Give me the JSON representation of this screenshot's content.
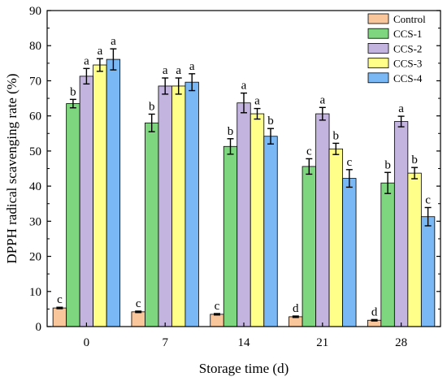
{
  "chart_data": {
    "type": "bar",
    "xlabel": "Storage time (d)",
    "ylabel": "DPPH radical scavenging rate (%)",
    "ylim": [
      0,
      90
    ],
    "yticks": [
      0,
      10,
      20,
      30,
      40,
      50,
      60,
      70,
      80,
      90
    ],
    "categories": [
      "0",
      "7",
      "14",
      "21",
      "28"
    ],
    "legend_position": "top-right",
    "grid": false,
    "series": [
      {
        "name": "Control",
        "color": "#f9c59a",
        "values": [
          5.3,
          4.2,
          3.5,
          2.8,
          1.8
        ],
        "errors": [
          0.2,
          0.2,
          0.2,
          0.2,
          0.2
        ],
        "labels": [
          "c",
          "c",
          "c",
          "d",
          "d"
        ]
      },
      {
        "name": "CCS-1",
        "color": "#7ed67e",
        "values": [
          63.5,
          58.0,
          51.3,
          45.6,
          40.9
        ],
        "errors": [
          1.2,
          2.5,
          2.2,
          2.2,
          3.0
        ],
        "labels": [
          "b",
          "b",
          "b",
          "c",
          "b"
        ]
      },
      {
        "name": "CCS-2",
        "color": "#c3b3df",
        "values": [
          71.3,
          68.5,
          63.7,
          60.6,
          58.4
        ],
        "errors": [
          2.2,
          2.3,
          2.8,
          1.8,
          1.5
        ],
        "labels": [
          "a",
          "a",
          "a",
          "a",
          "a"
        ]
      },
      {
        "name": "CCS-3",
        "color": "#ffff8a",
        "values": [
          74.5,
          68.5,
          60.6,
          50.6,
          43.7
        ],
        "errors": [
          1.8,
          2.3,
          1.5,
          1.6,
          1.6
        ],
        "labels": [
          "a",
          "a",
          "a",
          "b",
          "b"
        ]
      },
      {
        "name": "CCS-4",
        "color": "#7ab8f5",
        "values": [
          76.1,
          69.6,
          54.2,
          42.2,
          31.3
        ],
        "errors": [
          3.0,
          2.4,
          2.2,
          2.5,
          2.6
        ],
        "labels": [
          "a",
          "a",
          "b",
          "c",
          "c"
        ]
      }
    ]
  }
}
